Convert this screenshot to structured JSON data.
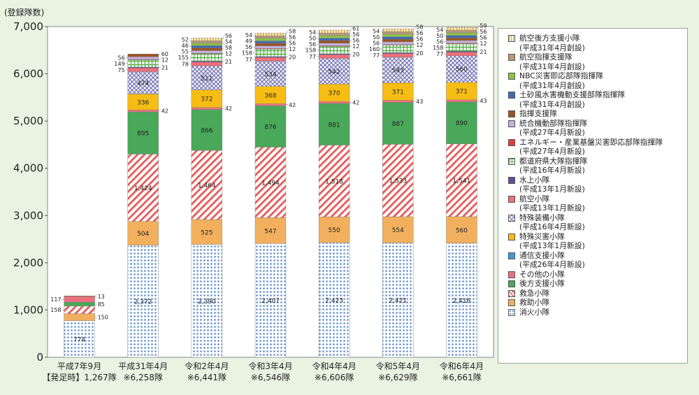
{
  "chart_data": {
    "type": "bar",
    "stacked": true,
    "y_unit_label": "(登録隊数)",
    "ylim": [
      0,
      7000
    ],
    "y_ticks": [
      "0",
      "1,000",
      "2,000",
      "3,000",
      "4,000",
      "5,000",
      "6,000",
      "7,000"
    ],
    "categories": [
      {
        "line1": "平成7年9月",
        "line2": "【発足時】1,267隊",
        "total": 1267
      },
      {
        "line1": "平成31年4月",
        "line2": "※6,258隊",
        "total": 6258
      },
      {
        "line1": "令和2年4月",
        "line2": "※6,441隊",
        "total": 6441
      },
      {
        "line1": "令和3年4月",
        "line2": "※6,546隊",
        "total": 6546
      },
      {
        "line1": "令和4年4月",
        "line2": "※6,606隊",
        "total": 6606
      },
      {
        "line1": "令和5年4月",
        "line2": "※6,629隊",
        "total": 6629
      },
      {
        "line1": "令和6年4月",
        "line2": "※6,661隊",
        "total": 6661
      }
    ],
    "series": [
      {
        "name": "消火小隊",
        "sub": "",
        "color": "#5b8bd0",
        "pattern": "dots",
        "values": [
          774,
          2372,
          2390,
          2407,
          2423,
          2421,
          2416
        ]
      },
      {
        "name": "救助小隊",
        "sub": "",
        "color": "#f2b05e",
        "pattern": "solid",
        "values": [
          150,
          504,
          525,
          547,
          550,
          554,
          560
        ]
      },
      {
        "name": "救急小隊",
        "sub": "",
        "color": "#e46464",
        "pattern": "hatch",
        "values": [
          158,
          1424,
          1464,
          1494,
          1518,
          1533,
          1541
        ]
      },
      {
        "name": "後方支援小隊",
        "sub": "",
        "color": "#4aa85a",
        "pattern": "solid",
        "values": [
          85,
          895,
          866,
          876,
          881,
          887,
          890
        ]
      },
      {
        "name": "その他の小隊",
        "sub": "",
        "color": "#f07080",
        "pattern": "solid",
        "values": [
          117,
          42,
          42,
          42,
          42,
          43,
          43
        ]
      },
      {
        "name": "通信支援小隊",
        "sub": "(平成26年4月新設)",
        "color": "#3b9ad8",
        "pattern": "solid",
        "values": [
          0,
          0,
          0,
          0,
          0,
          0,
          0
        ]
      },
      {
        "name": "特殊災害小隊",
        "sub": "(平成13年1月新設)",
        "color": "#f7bd14",
        "pattern": "solid",
        "values": [
          0,
          336,
          372,
          368,
          370,
          371,
          371
        ]
      },
      {
        "name": "特殊装備小隊",
        "sub": "(平成16年4月新設)",
        "color": "#7c79b8",
        "pattern": "cross",
        "values": [
          0,
          474,
          511,
          534,
          542,
          543,
          560
        ]
      },
      {
        "name": "航空小隊",
        "sub": "(平成13年1月新設)",
        "color": "#ef6f79",
        "pattern": "solid",
        "values": [
          0,
          75,
          78,
          77,
          77,
          77,
          77
        ]
      },
      {
        "name": "水上小隊",
        "sub": "(平成13年1月新設)",
        "color": "#5e4f96",
        "pattern": "solid",
        "values": [
          0,
          21,
          21,
          20,
          20,
          20,
          21
        ]
      },
      {
        "name": "都道府県大隊指揮隊",
        "sub": "(平成16年4月新設)",
        "color": "#58b04a",
        "pattern": "grid",
        "values": [
          0,
          149,
          155,
          158,
          158,
          160,
          158
        ]
      },
      {
        "name": "エネルギー・産業基盤災害即応部隊指揮隊",
        "sub": "(平成27年4月新設)",
        "color": "#e83a3a",
        "pattern": "solid",
        "values": [
          0,
          12,
          12,
          12,
          12,
          12,
          12
        ]
      },
      {
        "name": "統合機動部隊指揮隊",
        "sub": "(平成27年4月新設)",
        "color": "#c3b1dc",
        "pattern": "solid",
        "values": [
          0,
          56,
          55,
          56,
          56,
          56,
          56
        ]
      },
      {
        "name": "指揮支援隊",
        "sub": "",
        "color": "#9a5524",
        "pattern": "solid",
        "values": [
          13,
          60,
          58,
          56,
          56,
          56,
          56
        ]
      },
      {
        "name": "土砂風水害機動支援部隊指揮隊",
        "sub": "(平成31年4月創設)",
        "color": "#3f6cb3",
        "pattern": "solid",
        "values": [
          0,
          0,
          46,
          49,
          50,
          50,
          50
        ]
      },
      {
        "name": "NBC災害即応部隊指揮隊",
        "sub": "(平成31年4月創設)",
        "color": "#8bc34a",
        "pattern": "solid",
        "values": [
          0,
          0,
          54,
          56,
          56,
          56,
          56
        ]
      },
      {
        "name": "航空指揮支援隊",
        "sub": "(平成31年4月創設)",
        "color": "#b8987a",
        "pattern": "solid",
        "values": [
          0,
          0,
          52,
          54,
          54,
          54,
          54
        ]
      },
      {
        "name": "航空後方支援小隊",
        "sub": "(平成31年4月創設)",
        "color": "#f2c66d",
        "pattern": "vstripe",
        "values": [
          0,
          0,
          56,
          58,
          61,
          58,
          59
        ]
      }
    ]
  }
}
